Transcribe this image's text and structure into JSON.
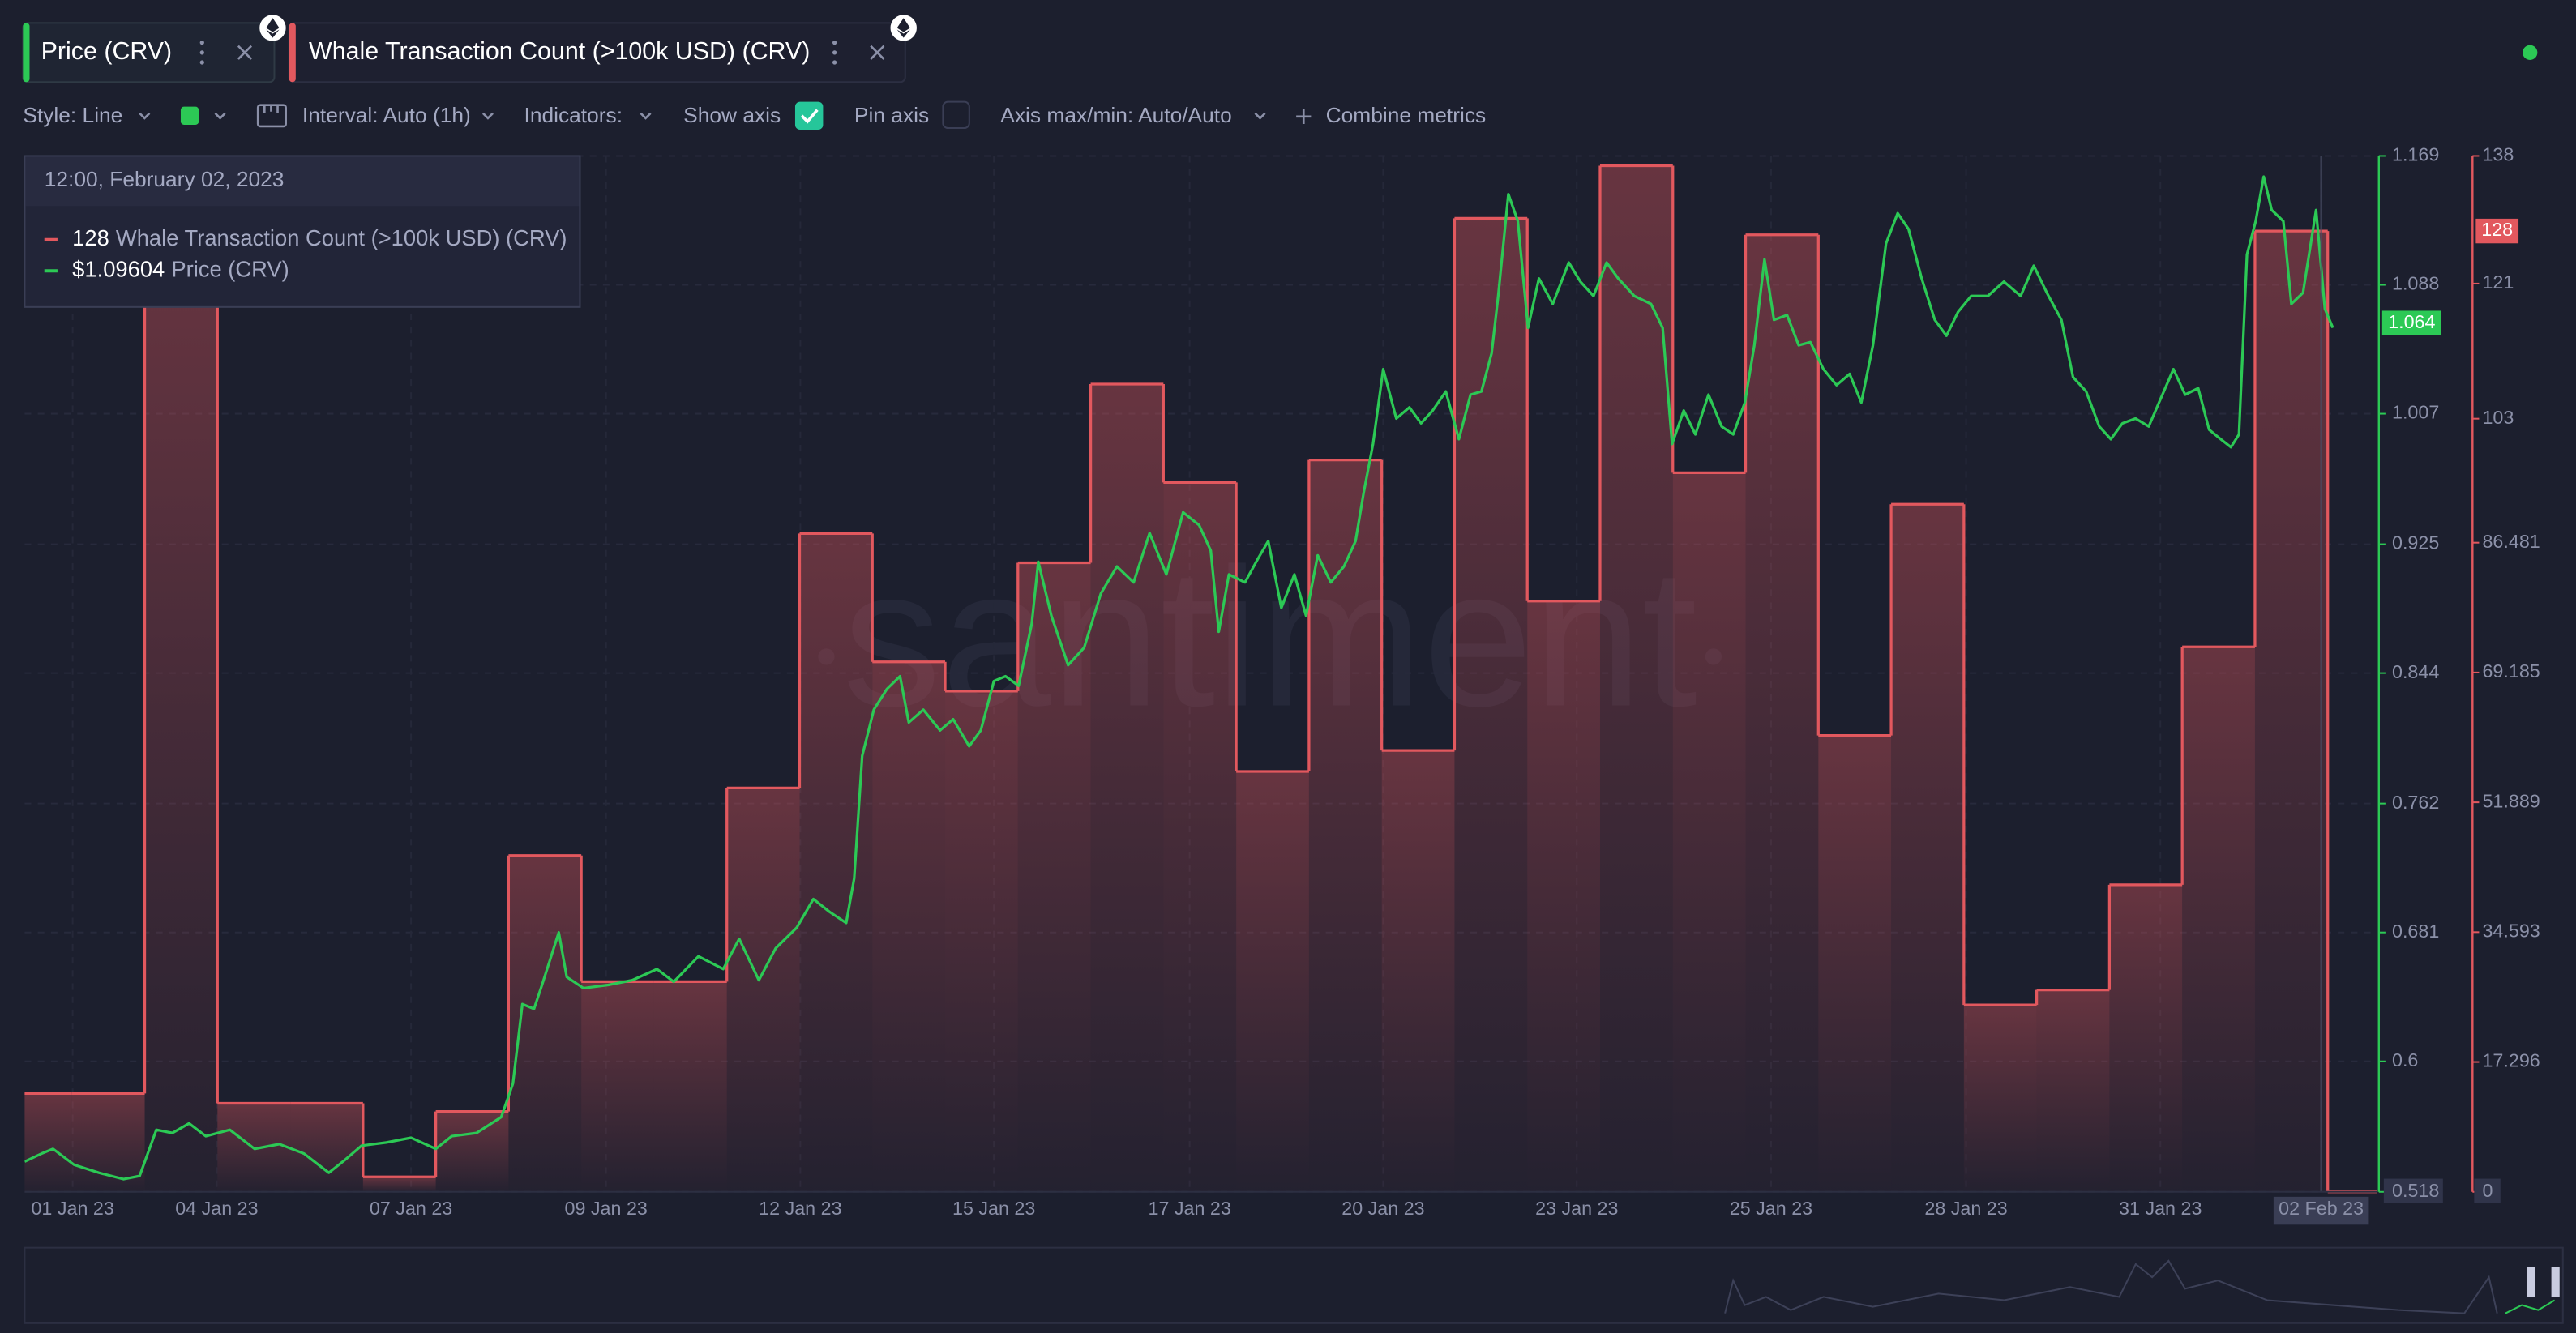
{
  "toolbar": {
    "style": "Style: Line",
    "interval": "Interval: Auto (1h)",
    "indicators": "Indicators:",
    "show_axis": "Show axis",
    "pin_axis": "Pin axis",
    "axis_range": "Axis max/min: Auto/Auto",
    "combine": "Combine metrics"
  },
  "tooltip": {
    "date": "12:00, February 02, 2023",
    "values": [
      "128",
      "$1.09604"
    ]
  },
  "watermark": "santiment",
  "chart_data": {
    "type": "line",
    "grid": true,
    "xlim": [
      -1.65,
      30.68
    ],
    "xticks": [
      {
        "value": -0.99,
        "label": "01 Jan 23"
      },
      {
        "value": 0.99,
        "label": "04 Jan 23"
      },
      {
        "value": 3.66,
        "label": "07 Jan 23"
      },
      {
        "value": 6.34,
        "label": "09 Jan 23"
      },
      {
        "value": 9.01,
        "label": "12 Jan 23"
      },
      {
        "value": 11.67,
        "label": "15 Jan 23"
      },
      {
        "value": 14.36,
        "label": "17 Jan 23"
      },
      {
        "value": 17.02,
        "label": "20 Jan 23"
      },
      {
        "value": 19.68,
        "label": "23 Jan 23"
      },
      {
        "value": 22.35,
        "label": "25 Jan 23"
      },
      {
        "value": 25.03,
        "label": "28 Jan 23"
      },
      {
        "value": 27.7,
        "label": "31 Jan 23"
      },
      {
        "value": 29.91,
        "label": "02 Feb 23"
      }
    ],
    "ylim": [
      0.518,
      1.169
    ],
    "yticks": [
      0.518,
      0.6,
      0.681,
      0.762,
      0.844,
      0.925,
      1.007,
      1.088,
      1.169
    ],
    "y2lim": [
      0,
      138
    ],
    "y2ticks": [
      0,
      17.296,
      34.593,
      51.889,
      69.185,
      86.481,
      103,
      121,
      138
    ],
    "series": [
      {
        "name": "Price (CRV)",
        "color": "#2cc955",
        "last_value": 1.064,
        "x": [
          -1.65,
          -1.42,
          -1.26,
          -0.97,
          -0.63,
          -0.29,
          -0.07,
          0.16,
          0.38,
          0.61,
          0.84,
          1.17,
          1.51,
          1.85,
          2.19,
          2.53,
          2.75,
          2.98,
          3.32,
          3.66,
          4.0,
          4.22,
          4.56,
          4.9,
          5.06,
          5.19,
          5.35,
          5.46,
          5.69,
          5.8,
          6.03,
          6.37,
          6.7,
          7.04,
          7.27,
          7.61,
          7.95,
          8.17,
          8.44,
          8.67,
          8.96,
          9.19,
          9.41,
          9.64,
          9.75,
          9.86,
          10.02,
          10.2,
          10.38,
          10.5,
          10.7,
          10.93,
          11.11,
          11.33,
          11.49,
          11.67,
          11.83,
          12.01,
          12.19,
          12.28,
          12.46,
          12.69,
          12.91,
          13.14,
          13.36,
          13.59,
          13.81,
          14.04,
          14.27,
          14.49,
          14.65,
          14.76,
          14.9,
          15.12,
          15.3,
          15.44,
          15.62,
          15.8,
          15.96,
          16.12,
          16.3,
          16.48,
          16.64,
          16.75,
          16.88,
          17.02,
          17.2,
          17.38,
          17.54,
          17.7,
          17.88,
          18.06,
          18.22,
          18.37,
          18.51,
          18.6,
          18.74,
          18.87,
          19.01,
          19.16,
          19.35,
          19.57,
          19.73,
          19.91,
          20.09,
          20.25,
          20.47,
          20.7,
          20.86,
          20.99,
          21.15,
          21.31,
          21.49,
          21.67,
          21.83,
          21.99,
          22.12,
          22.26,
          22.39,
          22.57,
          22.73,
          22.89,
          23.07,
          23.25,
          23.43,
          23.59,
          23.75,
          23.93,
          24.09,
          24.24,
          24.42,
          24.6,
          24.76,
          24.92,
          25.1,
          25.33,
          25.55,
          25.78,
          25.96,
          26.14,
          26.34,
          26.5,
          26.68,
          26.86,
          27.02,
          27.18,
          27.36,
          27.54,
          27.7,
          27.88,
          28.04,
          28.22,
          28.37,
          28.53,
          28.67,
          28.78,
          28.89,
          29.01,
          29.12,
          29.23,
          29.39,
          29.5,
          29.66,
          29.84,
          29.96,
          30.07
        ],
        "values": [
          0.537,
          0.542,
          0.545,
          0.535,
          0.53,
          0.526,
          0.528,
          0.557,
          0.555,
          0.561,
          0.553,
          0.557,
          0.545,
          0.548,
          0.542,
          0.53,
          0.538,
          0.547,
          0.549,
          0.552,
          0.545,
          0.553,
          0.555,
          0.565,
          0.586,
          0.636,
          0.633,
          0.648,
          0.681,
          0.653,
          0.646,
          0.648,
          0.651,
          0.658,
          0.65,
          0.666,
          0.658,
          0.677,
          0.651,
          0.671,
          0.684,
          0.702,
          0.694,
          0.687,
          0.715,
          0.792,
          0.821,
          0.834,
          0.842,
          0.813,
          0.821,
          0.808,
          0.815,
          0.798,
          0.808,
          0.839,
          0.842,
          0.836,
          0.875,
          0.914,
          0.88,
          0.849,
          0.86,
          0.894,
          0.911,
          0.901,
          0.932,
          0.906,
          0.945,
          0.937,
          0.921,
          0.87,
          0.906,
          0.901,
          0.916,
          0.927,
          0.885,
          0.906,
          0.88,
          0.918,
          0.901,
          0.911,
          0.927,
          0.957,
          0.988,
          1.035,
          1.004,
          1.011,
          1.001,
          1.009,
          1.021,
          0.991,
          1.019,
          1.021,
          1.045,
          1.081,
          1.145,
          1.128,
          1.061,
          1.092,
          1.076,
          1.102,
          1.09,
          1.081,
          1.102,
          1.092,
          1.081,
          1.076,
          1.061,
          0.988,
          1.009,
          0.994,
          1.019,
          0.999,
          0.994,
          1.014,
          1.05,
          1.104,
          1.066,
          1.069,
          1.05,
          1.052,
          1.035,
          1.025,
          1.032,
          1.014,
          1.05,
          1.114,
          1.133,
          1.123,
          1.092,
          1.066,
          1.056,
          1.071,
          1.081,
          1.081,
          1.09,
          1.081,
          1.1,
          1.083,
          1.066,
          1.03,
          1.021,
          0.999,
          0.991,
          1.001,
          1.004,
          0.999,
          1.016,
          1.035,
          1.019,
          1.023,
          0.997,
          0.991,
          0.986,
          0.994,
          1.107,
          1.128,
          1.156,
          1.135,
          1.128,
          1.076,
          1.083,
          1.135,
          1.073,
          1.061
        ]
      },
      {
        "name": "Whale Transaction Count (>100k USD) (CRV)",
        "color": "#e2585e",
        "axis": "y2",
        "step": true,
        "last_value": 128,
        "x": [
          -2,
          -1,
          0,
          1,
          2,
          3,
          4,
          5,
          6,
          7,
          8,
          9,
          10,
          11,
          12,
          13,
          14,
          15,
          16,
          17,
          18,
          19,
          20,
          21,
          22,
          23,
          24,
          25,
          26,
          27,
          28,
          29,
          30
        ],
        "values": [
          13.1,
          13.1,
          126,
          11.8,
          11.8,
          2,
          10.7,
          44.8,
          28,
          28,
          53.8,
          87.7,
          70.6,
          66.7,
          83.8,
          107.6,
          94.5,
          56,
          97.5,
          58.8,
          129.7,
          78.7,
          136.7,
          95.8,
          127.5,
          60.8,
          91.6,
          24.9,
          26.9,
          40.9,
          72.6,
          128,
          0
        ]
      }
    ]
  }
}
